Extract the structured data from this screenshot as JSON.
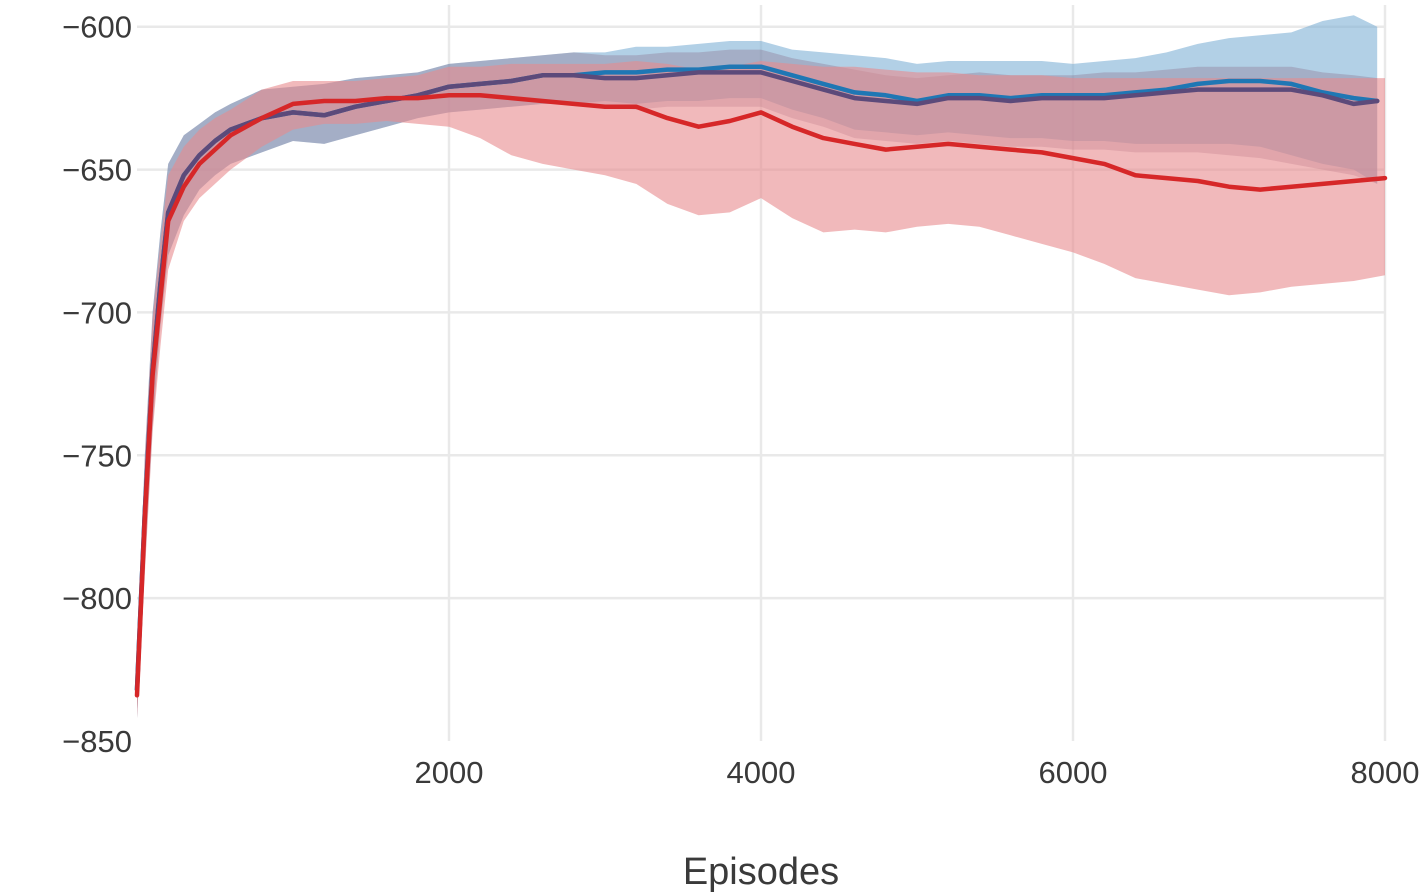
{
  "chart_data": {
    "type": "line",
    "xlabel": "Episodes",
    "ylabel": "",
    "xlim": [
      0,
      8000
    ],
    "ylim": [
      -850,
      -590
    ],
    "grid": true,
    "x_ticks": [
      2000,
      4000,
      6000,
      8000
    ],
    "x_tick_labels": [
      "2000",
      "4000",
      "6000",
      "8000"
    ],
    "y_ticks": [
      -600,
      -650,
      -700,
      -750,
      -800,
      -850
    ],
    "y_tick_labels": [
      "−600",
      "−650",
      "−700",
      "−750",
      "−800",
      "−850"
    ],
    "series": [
      {
        "color": "#1f77b4",
        "band_color": "#7fb0d6",
        "x": [
          0,
          50,
          100,
          150,
          200,
          300,
          400,
          500,
          600,
          800,
          1000,
          1200,
          1400,
          1600,
          1800,
          2000,
          2200,
          2400,
          2600,
          2800,
          3000,
          3200,
          3400,
          3600,
          3800,
          4000,
          4200,
          4400,
          4600,
          4800,
          5000,
          5200,
          5400,
          5600,
          5800,
          6000,
          6200,
          6400,
          6600,
          6800,
          7000,
          7200,
          7400,
          7600,
          7800,
          7950
        ],
        "values": [
          -832,
          -770,
          -720,
          -690,
          -665,
          -652,
          -645,
          -640,
          -636,
          -632,
          -630,
          -631,
          -628,
          -626,
          -624,
          -621,
          -620,
          -619,
          -617,
          -617,
          -616,
          -616,
          -615,
          -615,
          -614,
          -614,
          -617,
          -620,
          -623,
          -624,
          -626,
          -624,
          -624,
          -625,
          -624,
          -624,
          -624,
          -623,
          -622,
          -620,
          -619,
          -619,
          -620,
          -623,
          -625,
          -626
        ],
        "lower": [
          -842,
          -790,
          -740,
          -705,
          -680,
          -666,
          -657,
          -652,
          -648,
          -644,
          -640,
          -641,
          -638,
          -635,
          -632,
          -630,
          -629,
          -628,
          -627,
          -627,
          -626,
          -627,
          -626,
          -626,
          -625,
          -625,
          -629,
          -632,
          -636,
          -637,
          -638,
          -637,
          -638,
          -639,
          -639,
          -640,
          -640,
          -641,
          -641,
          -641,
          -641,
          -642,
          -645,
          -648,
          -650,
          -655
        ],
        "upper": [
          -822,
          -750,
          -700,
          -672,
          -648,
          -638,
          -634,
          -630,
          -627,
          -622,
          -621,
          -620,
          -618,
          -617,
          -616,
          -613,
          -612,
          -611,
          -610,
          -609,
          -609,
          -607,
          -607,
          -606,
          -605,
          -605,
          -608,
          -609,
          -610,
          -611,
          -613,
          -612,
          -612,
          -612,
          -612,
          -613,
          -612,
          -611,
          -609,
          -606,
          -604,
          -603,
          -602,
          -598,
          -596,
          -600
        ]
      },
      {
        "color": "#5c4a7a",
        "band_color": "#8a6f8a",
        "x": [
          0,
          50,
          100,
          150,
          200,
          300,
          400,
          500,
          600,
          800,
          1000,
          1200,
          1400,
          1600,
          1800,
          2000,
          2200,
          2400,
          2600,
          2800,
          3000,
          3200,
          3400,
          3600,
          3800,
          4000,
          4200,
          4400,
          4600,
          4800,
          5000,
          5200,
          5400,
          5600,
          5800,
          6000,
          6200,
          6400,
          6600,
          6800,
          7000,
          7200,
          7400,
          7600,
          7800,
          7950
        ],
        "values": [
          -832,
          -770,
          -720,
          -690,
          -665,
          -652,
          -645,
          -640,
          -636,
          -632,
          -630,
          -631,
          -628,
          -626,
          -624,
          -621,
          -620,
          -619,
          -617,
          -617,
          -618,
          -618,
          -617,
          -616,
          -616,
          -616,
          -619,
          -622,
          -625,
          -626,
          -627,
          -625,
          -625,
          -626,
          -625,
          -625,
          -625,
          -624,
          -623,
          -622,
          -622,
          -622,
          -622,
          -624,
          -627,
          -626
        ],
        "lower": [
          -842,
          -790,
          -740,
          -705,
          -680,
          -666,
          -657,
          -652,
          -648,
          -644,
          -640,
          -641,
          -638,
          -635,
          -632,
          -630,
          -629,
          -628,
          -627,
          -627,
          -628,
          -629,
          -628,
          -628,
          -628,
          -628,
          -632,
          -635,
          -639,
          -640,
          -641,
          -640,
          -641,
          -642,
          -642,
          -643,
          -643,
          -644,
          -644,
          -644,
          -645,
          -646,
          -648,
          -650,
          -652,
          -655
        ],
        "upper": [
          -822,
          -750,
          -700,
          -672,
          -648,
          -638,
          -634,
          -630,
          -627,
          -622,
          -621,
          -620,
          -618,
          -617,
          -616,
          -613,
          -612,
          -611,
          -610,
          -609,
          -610,
          -610,
          -609,
          -609,
          -608,
          -608,
          -611,
          -613,
          -615,
          -617,
          -618,
          -617,
          -616,
          -617,
          -617,
          -617,
          -616,
          -616,
          -615,
          -614,
          -614,
          -614,
          -614,
          -616,
          -617,
          -618
        ]
      },
      {
        "color": "#d62728",
        "band_color": "#e88a8e",
        "x": [
          0,
          50,
          100,
          150,
          200,
          300,
          400,
          500,
          600,
          800,
          1000,
          1200,
          1400,
          1600,
          1800,
          2000,
          2200,
          2400,
          2600,
          2800,
          3000,
          3200,
          3400,
          3600,
          3800,
          4000,
          4200,
          4400,
          4600,
          4800,
          5000,
          5200,
          5400,
          5600,
          5800,
          6000,
          6200,
          6400,
          6600,
          6800,
          7000,
          7200,
          7400,
          7600,
          7800,
          8000
        ],
        "values": [
          -834,
          -772,
          -722,
          -695,
          -668,
          -656,
          -648,
          -643,
          -638,
          -632,
          -627,
          -626,
          -626,
          -625,
          -625,
          -624,
          -624,
          -625,
          -626,
          -627,
          -628,
          -628,
          -632,
          -635,
          -633,
          -630,
          -635,
          -639,
          -641,
          -643,
          -642,
          -641,
          -642,
          -643,
          -644,
          -646,
          -648,
          -652,
          -653,
          -654,
          -656,
          -657,
          -656,
          -655,
          -654,
          -653
        ],
        "lower": [
          -842,
          -792,
          -742,
          -712,
          -685,
          -668,
          -660,
          -655,
          -650,
          -642,
          -636,
          -634,
          -634,
          -633,
          -634,
          -635,
          -639,
          -645,
          -648,
          -650,
          -652,
          -655,
          -662,
          -666,
          -665,
          -660,
          -667,
          -672,
          -671,
          -672,
          -670,
          -669,
          -670,
          -673,
          -676,
          -679,
          -683,
          -688,
          -690,
          -692,
          -694,
          -693,
          -691,
          -690,
          -689,
          -687
        ],
        "upper": [
          -826,
          -752,
          -702,
          -676,
          -652,
          -642,
          -636,
          -632,
          -629,
          -622,
          -619,
          -619,
          -619,
          -618,
          -617,
          -614,
          -614,
          -613,
          -613,
          -613,
          -613,
          -612,
          -613,
          -615,
          -614,
          -612,
          -613,
          -614,
          -614,
          -615,
          -616,
          -616,
          -617,
          -617,
          -617,
          -618,
          -618,
          -618,
          -618,
          -618,
          -618,
          -618,
          -618,
          -618,
          -618,
          -618
        ]
      }
    ]
  }
}
